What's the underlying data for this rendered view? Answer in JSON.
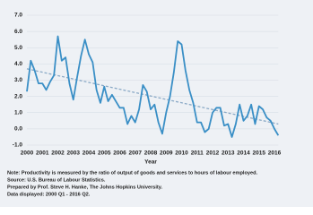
{
  "chart_data": {
    "type": "line",
    "xlabel": "Year",
    "categories": [
      "2000",
      null,
      null,
      null,
      "2001",
      null,
      null,
      null,
      "2002",
      null,
      null,
      null,
      "2003",
      null,
      null,
      null,
      "2004",
      null,
      null,
      null,
      "2005",
      null,
      null,
      null,
      "2006",
      null,
      null,
      null,
      "2007",
      null,
      null,
      null,
      "2008",
      null,
      null,
      null,
      "2009",
      null,
      null,
      null,
      "2010",
      null,
      null,
      null,
      "2011",
      null,
      null,
      null,
      "2012",
      null,
      null,
      null,
      "2013",
      null,
      null,
      null,
      "2014",
      null,
      null,
      null,
      "2015",
      null,
      null,
      null,
      "2016",
      null
    ],
    "series": [
      {
        "color": "#3a8fc6",
        "values": [
          2.3,
          4.2,
          3.6,
          2.8,
          2.8,
          2.4,
          2.9,
          3.3,
          5.7,
          4.2,
          4.4,
          2.8,
          1.8,
          3.2,
          4.5,
          5.5,
          4.6,
          4.1,
          2.4,
          1.6,
          2.6,
          1.7,
          2.1,
          1.7,
          1.3,
          1.3,
          0.3,
          0.8,
          0.4,
          1.2,
          2.7,
          2.3,
          1.2,
          1.5,
          0.4,
          -0.3,
          1.0,
          2.0,
          3.5,
          5.4,
          5.2,
          3.6,
          2.4,
          1.6,
          0.4,
          0.4,
          -0.2,
          0.0,
          1.0,
          1.3,
          1.3,
          0.2,
          0.3,
          -0.5,
          0.3,
          1.5,
          0.5,
          0.8,
          1.5,
          0.3,
          1.4,
          1.2,
          0.7,
          0.5,
          0.0,
          -0.4
        ]
      }
    ],
    "trend": {
      "color": "#8aa9c6",
      "values": [
        3.7,
        0.3
      ]
    },
    "ylim": [
      -1.0,
      7.0
    ],
    "yticks": [
      {
        "value": -1,
        "label": "-1.0"
      },
      {
        "value": 0,
        "label": "0.0"
      },
      {
        "value": 1,
        "label": "1.0"
      },
      {
        "value": 2,
        "label": "2.0"
      },
      {
        "value": 3,
        "label": "3.0"
      },
      {
        "value": 4,
        "label": "4.0"
      },
      {
        "value": 5,
        "label": "5.0"
      },
      {
        "value": 6,
        "label": "6.0"
      },
      {
        "value": 7,
        "label": "7.0"
      }
    ],
    "grid": true,
    "notes": [
      "Note: Productivity is measured by the ratio of output of goods and services to hours of labour employed.",
      "Source: U.S. Bureau of Labour Statistics.",
      "Prepared by Prof. Steve H. Hanke, The Johns Hopkins University.",
      "Data displayed: 2000 Q1 - 2016 Q2."
    ]
  }
}
